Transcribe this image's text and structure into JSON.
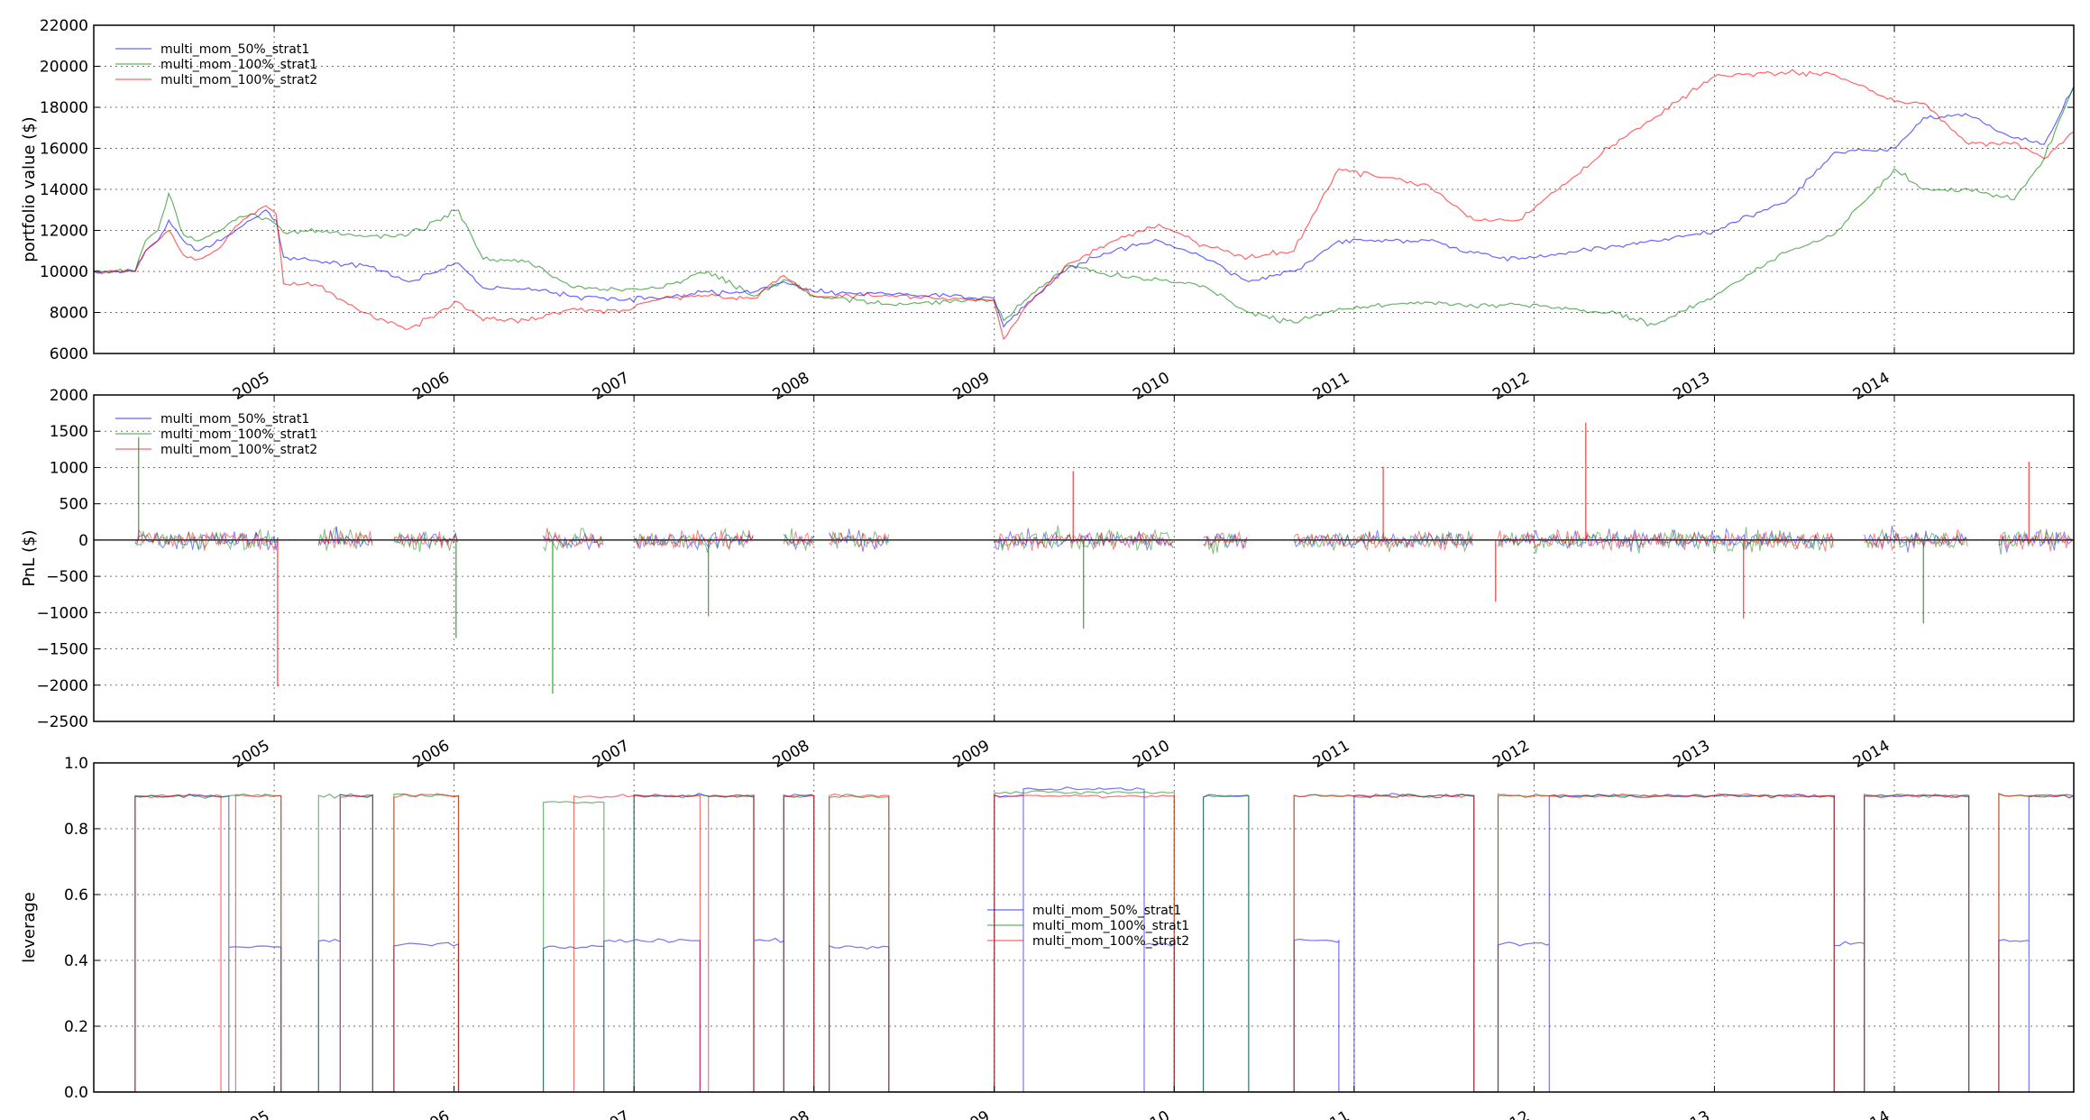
{
  "chart_data": [
    {
      "type": "line",
      "ylabel": "portfolio value ($)",
      "xlim": [
        "2004-01-01",
        "2014-12-31"
      ],
      "ylim": [
        6000,
        22000
      ],
      "yticks": [
        6000,
        8000,
        10000,
        12000,
        14000,
        16000,
        18000,
        20000,
        22000
      ],
      "ytick_labels": [
        "6000",
        "8000",
        "10000",
        "12000",
        "14000",
        "16000",
        "18000",
        "20000",
        "22000"
      ],
      "xticks": [
        "2005",
        "2006",
        "2007",
        "2008",
        "2009",
        "2010",
        "2011",
        "2012",
        "2013",
        "2014"
      ],
      "grid": true,
      "legend_position": "top-left",
      "series": [
        {
          "name": "multi_mom_50%_strat1",
          "color": "#0000ff",
          "x": [
            "2004-01-01",
            "2004-03-25",
            "2004-04-15",
            "2004-05-10",
            "2004-06-01",
            "2004-07-01",
            "2004-08-01",
            "2004-09-15",
            "2004-10-15",
            "2004-11-15",
            "2004-12-15",
            "2005-01-05",
            "2005-01-20",
            "2005-04-01",
            "2005-07-01",
            "2005-10-01",
            "2006-01-10",
            "2006-03-01",
            "2006-06-01",
            "2006-09-01",
            "2006-12-01",
            "2007-03-01",
            "2007-06-01",
            "2007-09-01",
            "2007-11-01",
            "2008-01-01",
            "2008-06-01",
            "2008-12-31",
            "2009-01-20",
            "2009-03-10",
            "2009-06-01",
            "2009-09-01",
            "2009-12-01",
            "2010-03-01",
            "2010-06-01",
            "2010-09-01",
            "2010-12-01",
            "2011-06-01",
            "2011-09-01",
            "2011-12-01",
            "2012-06-01",
            "2012-09-01",
            "2013-01-01",
            "2013-06-01",
            "2013-09-01",
            "2014-01-01",
            "2014-03-01",
            "2014-06-01",
            "2014-09-01",
            "2014-11-01",
            "2014-12-31"
          ],
          "y": [
            10000,
            10000,
            11000,
            11500,
            12500,
            11500,
            11000,
            11500,
            12000,
            12500,
            13000,
            12500,
            10700,
            10500,
            10300,
            9500,
            10400,
            9200,
            9200,
            8800,
            8600,
            8700,
            9000,
            9000,
            9500,
            9000,
            8900,
            8700,
            7300,
            8500,
            10200,
            11000,
            11500,
            10700,
            9500,
            10000,
            11500,
            11500,
            10900,
            10600,
            11200,
            11500,
            12000,
            13500,
            15800,
            16000,
            17500,
            17600,
            16500,
            16200,
            19000
          ]
        },
        {
          "name": "multi_mom_100%_strat1",
          "color": "#008000",
          "x": [
            "2004-01-01",
            "2004-03-25",
            "2004-04-15",
            "2004-05-10",
            "2004-06-01",
            "2004-07-01",
            "2004-08-01",
            "2004-09-15",
            "2004-10-15",
            "2004-11-15",
            "2004-12-15",
            "2005-01-05",
            "2005-01-20",
            "2005-04-01",
            "2005-07-01",
            "2005-10-01",
            "2006-01-10",
            "2006-03-01",
            "2006-06-01",
            "2006-09-01",
            "2006-12-01",
            "2007-03-01",
            "2007-06-01",
            "2007-09-01",
            "2007-11-01",
            "2008-01-01",
            "2008-06-01",
            "2008-12-31",
            "2009-01-20",
            "2009-03-10",
            "2009-06-01",
            "2009-09-01",
            "2009-12-01",
            "2010-03-01",
            "2010-06-01",
            "2010-09-01",
            "2010-12-01",
            "2011-06-01",
            "2011-09-01",
            "2011-12-01",
            "2012-06-01",
            "2012-09-01",
            "2013-01-01",
            "2013-06-01",
            "2013-09-01",
            "2014-01-01",
            "2014-03-01",
            "2014-06-01",
            "2014-09-01",
            "2014-11-01",
            "2014-12-31"
          ],
          "y": [
            10000,
            10000,
            11500,
            12000,
            13800,
            11800,
            11500,
            12000,
            12500,
            12800,
            12600,
            12300,
            11900,
            12000,
            11700,
            11800,
            13000,
            10600,
            10500,
            9200,
            9100,
            9200,
            10000,
            8800,
            9600,
            8800,
            8400,
            8600,
            7600,
            8700,
            10300,
            9800,
            9600,
            9300,
            8000,
            7500,
            8200,
            8500,
            8300,
            8400,
            8000,
            7400,
            8800,
            11000,
            11800,
            15000,
            14000,
            14000,
            13500,
            15500,
            19000
          ]
        },
        {
          "name": "multi_mom_100%_strat2",
          "color": "#ff0000",
          "x": [
            "2004-01-01",
            "2004-03-25",
            "2004-04-15",
            "2004-05-10",
            "2004-06-01",
            "2004-07-01",
            "2004-08-01",
            "2004-09-15",
            "2004-10-15",
            "2004-11-15",
            "2004-12-15",
            "2005-01-05",
            "2005-01-20",
            "2005-04-01",
            "2005-07-01",
            "2005-10-01",
            "2006-01-10",
            "2006-03-01",
            "2006-06-01",
            "2006-09-01",
            "2006-12-01",
            "2007-03-01",
            "2007-06-01",
            "2007-09-01",
            "2007-11-01",
            "2008-01-01",
            "2008-06-01",
            "2008-12-31",
            "2009-01-20",
            "2009-03-10",
            "2009-06-01",
            "2009-09-01",
            "2009-12-01",
            "2010-03-01",
            "2010-06-01",
            "2010-09-01",
            "2010-12-01",
            "2011-06-01",
            "2011-09-01",
            "2011-12-01",
            "2012-06-01",
            "2012-09-01",
            "2013-01-01",
            "2013-06-01",
            "2013-09-01",
            "2014-01-01",
            "2014-03-01",
            "2014-06-01",
            "2014-09-01",
            "2014-11-01",
            "2014-12-31"
          ],
          "y": [
            10000,
            10000,
            11000,
            11500,
            12000,
            10800,
            10600,
            11200,
            12200,
            12800,
            13200,
            12800,
            9400,
            9300,
            8000,
            7200,
            8500,
            7600,
            7600,
            8200,
            8000,
            8700,
            8800,
            8700,
            9800,
            8800,
            8800,
            8600,
            6700,
            8400,
            10400,
            11500,
            12300,
            11300,
            10700,
            11000,
            15000,
            14200,
            12500,
            12500,
            16000,
            17500,
            19500,
            19700,
            19600,
            18300,
            18200,
            16200,
            16300,
            15500,
            16800
          ]
        }
      ]
    },
    {
      "type": "line",
      "ylabel": "PnL ($)",
      "xlim": [
        "2004-01-01",
        "2014-12-31"
      ],
      "ylim": [
        -2500,
        2000
      ],
      "yticks": [
        -2500,
        -2000,
        -1500,
        -1000,
        -500,
        0,
        500,
        1000,
        1500,
        2000
      ],
      "ytick_labels": [
        "−2500",
        "−2000",
        "−1500",
        "−1000",
        "−500",
        "0",
        "500",
        "1000",
        "1500",
        "2000"
      ],
      "xticks": [
        "2005",
        "2006",
        "2007",
        "2008",
        "2009",
        "2010",
        "2011",
        "2012",
        "2013",
        "2014"
      ],
      "grid": true,
      "legend_position": "top-left",
      "series": [
        {
          "name": "multi_mom_50%_strat1",
          "color": "#0000ff"
        },
        {
          "name": "multi_mom_100%_strat1",
          "color": "#008000"
        },
        {
          "name": "multi_mom_100%_strat2",
          "color": "#ff0000"
        }
      ],
      "active_periods": [
        [
          "2004-03-25",
          "2005-01-10"
        ],
        [
          "2005-04-01",
          "2005-07-20"
        ],
        [
          "2005-09-01",
          "2006-01-10"
        ],
        [
          "2006-07-01",
          "2006-11-01"
        ],
        [
          "2007-01-01",
          "2007-09-01"
        ],
        [
          "2007-11-01",
          "2008-01-01"
        ],
        [
          "2008-02-01",
          "2008-06-01"
        ],
        [
          "2009-01-01",
          "2010-01-01"
        ],
        [
          "2010-03-01",
          "2010-06-01"
        ],
        [
          "2010-09-01",
          "2011-09-01"
        ],
        [
          "2011-10-20",
          "2013-09-01"
        ],
        [
          "2013-11-01",
          "2014-06-01"
        ],
        [
          "2014-08-01",
          "2014-12-31"
        ]
      ],
      "spikes": [
        {
          "x": "2004-04-01",
          "y": 1420,
          "series": "multi_mom_100%_strat1"
        },
        {
          "x": "2005-01-08",
          "y": -2020,
          "series": "multi_mom_100%_strat2"
        },
        {
          "x": "2006-01-05",
          "y": -1350,
          "series": "multi_mom_100%_strat1"
        },
        {
          "x": "2006-07-20",
          "y": -2120,
          "series": "multi_mom_100%_strat1"
        },
        {
          "x": "2007-06-01",
          "y": -1050,
          "series": "multi_mom_100%_strat1"
        },
        {
          "x": "2009-06-10",
          "y": 950,
          "series": "multi_mom_100%_strat2"
        },
        {
          "x": "2009-07-01",
          "y": -1220,
          "series": "multi_mom_100%_strat1"
        },
        {
          "x": "2011-03-01",
          "y": 1010,
          "series": "multi_mom_100%_strat2"
        },
        {
          "x": "2011-10-15",
          "y": -850,
          "series": "multi_mom_100%_strat2"
        },
        {
          "x": "2012-04-15",
          "y": 1620,
          "series": "multi_mom_100%_strat2"
        },
        {
          "x": "2013-03-01",
          "y": -1080,
          "series": "multi_mom_100%_strat2"
        },
        {
          "x": "2014-03-01",
          "y": -1150,
          "series": "multi_mom_100%_strat1"
        },
        {
          "x": "2014-10-01",
          "y": 1080,
          "series": "multi_mom_100%_strat2"
        }
      ]
    },
    {
      "type": "line",
      "ylabel": "leverage",
      "xlim": [
        "2004-01-01",
        "2014-12-31"
      ],
      "ylim": [
        0.0,
        1.0
      ],
      "yticks": [
        0.0,
        0.2,
        0.4,
        0.6,
        0.8,
        1.0
      ],
      "ytick_labels": [
        "0.0",
        "0.2",
        "0.4",
        "0.6",
        "0.8",
        "1.0"
      ],
      "xticks": [
        "2005",
        "2006",
        "2007",
        "2008",
        "2009",
        "2010",
        "2011",
        "2012",
        "2013",
        "2014"
      ],
      "grid": true,
      "legend_position": "center",
      "series": [
        {
          "name": "multi_mom_50%_strat1",
          "color": "#0000ff",
          "segments": [
            [
              "2004-03-25",
              "2004-10-01",
              0.9
            ],
            [
              "2004-10-01",
              "2005-01-15",
              0.44
            ],
            [
              "2005-04-01",
              "2005-05-15",
              0.46
            ],
            [
              "2005-05-15",
              "2005-07-20",
              0.9
            ],
            [
              "2005-09-01",
              "2006-01-10",
              0.45
            ],
            [
              "2006-07-01",
              "2006-11-01",
              0.44
            ],
            [
              "2006-11-01",
              "2007-05-15",
              0.46
            ],
            [
              "2007-01-01",
              "2007-09-01",
              0.9
            ],
            [
              "2007-09-01",
              "2007-11-01",
              0.46
            ],
            [
              "2007-11-01",
              "2008-01-01",
              0.9
            ],
            [
              "2008-02-01",
              "2008-06-01",
              0.44
            ],
            [
              "2009-01-01",
              "2009-03-01",
              0.9
            ],
            [
              "2009-03-01",
              "2009-11-01",
              0.92
            ],
            [
              "2009-11-01",
              "2010-01-01",
              0.45
            ],
            [
              "2010-03-01",
              "2010-06-01",
              0.9
            ],
            [
              "2010-09-01",
              "2010-12-01",
              0.46
            ],
            [
              "2011-01-01",
              "2011-09-01",
              0.9
            ],
            [
              "2011-10-20",
              "2012-02-01",
              0.45
            ],
            [
              "2012-02-01",
              "2013-09-01",
              0.9
            ],
            [
              "2013-09-01",
              "2013-11-01",
              0.45
            ],
            [
              "2013-11-01",
              "2014-06-01",
              0.9
            ],
            [
              "2014-08-01",
              "2014-10-01",
              0.46
            ],
            [
              "2014-10-01",
              "2014-12-31",
              0.9
            ]
          ]
        },
        {
          "name": "multi_mom_100%_strat1",
          "color": "#008000",
          "segments": [
            [
              "2004-03-25",
              "2005-01-15",
              0.9
            ],
            [
              "2005-04-01",
              "2005-07-20",
              0.9
            ],
            [
              "2005-09-01",
              "2006-01-10",
              0.9
            ],
            [
              "2006-07-01",
              "2006-11-01",
              0.88
            ],
            [
              "2007-01-01",
              "2007-09-01",
              0.9
            ],
            [
              "2007-11-01",
              "2008-01-01",
              0.9
            ],
            [
              "2008-02-01",
              "2008-06-01",
              0.9
            ],
            [
              "2009-01-01",
              "2010-01-01",
              0.91
            ],
            [
              "2010-03-01",
              "2010-06-01",
              0.9
            ],
            [
              "2010-09-01",
              "2011-09-01",
              0.9
            ],
            [
              "2011-10-20",
              "2013-09-01",
              0.9
            ],
            [
              "2013-11-01",
              "2014-06-01",
              0.9
            ],
            [
              "2014-08-01",
              "2014-12-31",
              0.9
            ]
          ]
        },
        {
          "name": "multi_mom_100%_strat2",
          "color": "#ff0000",
          "segments": [
            [
              "2004-03-25",
              "2004-09-15",
              0.9
            ],
            [
              "2004-10-15",
              "2005-01-15",
              0.9
            ],
            [
              "2005-05-15",
              "2005-07-20",
              0.9
            ],
            [
              "2005-09-01",
              "2006-01-10",
              0.9
            ],
            [
              "2006-09-01",
              "2007-05-15",
              0.9
            ],
            [
              "2007-06-01",
              "2007-09-01",
              0.9
            ],
            [
              "2007-11-01",
              "2008-01-01",
              0.9
            ],
            [
              "2008-02-01",
              "2008-06-01",
              0.9
            ],
            [
              "2009-01-01",
              "2010-01-01",
              0.9
            ],
            [
              "2010-09-01",
              "2011-09-01",
              0.9
            ],
            [
              "2011-10-20",
              "2013-09-01",
              0.9
            ],
            [
              "2013-11-01",
              "2014-06-01",
              0.9
            ],
            [
              "2014-08-01",
              "2014-12-31",
              0.9
            ]
          ]
        }
      ]
    }
  ]
}
